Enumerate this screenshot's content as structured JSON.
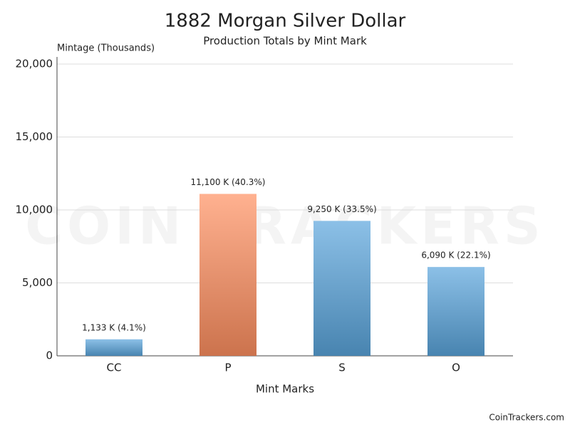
{
  "chart_data": {
    "type": "bar",
    "title": "1882 Morgan Silver Dollar",
    "subtitle": "Production Totals by Mint Mark",
    "y_axis_label": "Mintage (Thousands)",
    "x_axis_label": "Mint Marks",
    "watermark": "COIN TRACKERS",
    "source": "CoinTrackers.com",
    "categories": [
      "CC",
      "P",
      "S",
      "O"
    ],
    "values": [
      1133,
      11100,
      9250,
      6090
    ],
    "value_labels": [
      "1,133 K (4.1%)",
      "11,100 K (40.3%)",
      "9,250 K (33.5%)",
      "6,090 K (22.1%)"
    ],
    "colors": [
      "#5aa5dc",
      "#ff9060",
      "#5aa5dc",
      "#5aa5dc"
    ],
    "ylim": [
      0,
      20000
    ],
    "yticks": [
      0,
      {
        "value": 5000,
        "label": "5,000"
      },
      {
        "value": 10000,
        "label": "10,000"
      },
      {
        "value": 15000,
        "label": "15,000"
      },
      {
        "value": 20000,
        "label": "20,000"
      }
    ],
    "grid": true
  }
}
